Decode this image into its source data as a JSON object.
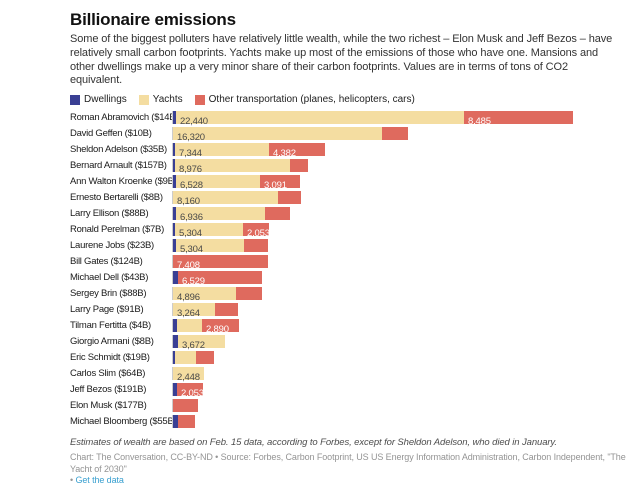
{
  "header": {
    "title": "Billionaire emissions",
    "description": "Some of the biggest polluters have relatively little wealth, while the two richest – Elon Musk and Jeff Bezos – have relatively small carbon footprints. Yachts make up most of the emissions of those who have one. Mansions and other dwellings make up a very minor share of their carbon footprints. Values are in terms of tons of CO2 equivalent."
  },
  "colors": {
    "dwellings": "#3a3f94",
    "yachts": "#f4dda1",
    "other": "#df6a5e",
    "axis_line": "#cccccc",
    "link": "#3aa0d0"
  },
  "legend": {
    "items": [
      {
        "key": "dwellings",
        "label": "Dwellings"
      },
      {
        "key": "yachts",
        "label": "Yachts"
      },
      {
        "key": "other",
        "label": "Other transportation (planes, helicopters, cars)"
      }
    ]
  },
  "chart_data": {
    "type": "bar",
    "stacked": true,
    "orientation": "horizontal",
    "value_unit": "tons of CO2 equivalent",
    "series": [
      "Dwellings",
      "Yachts",
      "Other transportation (planes, helicopters, cars)"
    ],
    "axis": {
      "x_min": 0,
      "x_max": 35000,
      "tons_per_pixel": 78,
      "gridlines": false
    },
    "note": "values without in-bar labels are unlabeled in the chart and estimated from bar lengths",
    "rows": [
      {
        "name": "Roman Abramovich ($14B)",
        "values": {
          "dwellings": 230,
          "yachts": 22440,
          "other": 8485
        },
        "value_labels": {
          "yachts": "22,440",
          "other": "8,485"
        }
      },
      {
        "name": "David Geffen ($10B)",
        "values": {
          "dwellings": 0,
          "yachts": 16320,
          "other": 2000
        },
        "value_labels": {
          "yachts": "16,320"
        }
      },
      {
        "name": "Sheldon Adelson ($35B)",
        "values": {
          "dwellings": 180,
          "yachts": 7344,
          "other": 4382
        },
        "value_labels": {
          "yachts": "7,344",
          "other": "4,382"
        }
      },
      {
        "name": "Bernard Arnault ($157B)",
        "values": {
          "dwellings": 160,
          "yachts": 8976,
          "other": 1400
        },
        "value_labels": {
          "yachts": "8,976"
        }
      },
      {
        "name": "Ann Walton Kroenke ($9B)",
        "values": {
          "dwellings": 230,
          "yachts": 6528,
          "other": 3091
        },
        "value_labels": {
          "yachts": "6,528",
          "other": "3,091"
        }
      },
      {
        "name": "Ernesto Bertarelli ($8B)",
        "values": {
          "dwellings": 0,
          "yachts": 8160,
          "other": 1800
        },
        "value_labels": {
          "yachts": "8,160"
        }
      },
      {
        "name": "Larry Ellison ($88B)",
        "values": {
          "dwellings": 230,
          "yachts": 6936,
          "other": 1950
        },
        "value_labels": {
          "yachts": "6,936"
        }
      },
      {
        "name": "Ronald Perelman ($7B)",
        "values": {
          "dwellings": 150,
          "yachts": 5304,
          "other": 2053
        },
        "value_labels": {
          "yachts": "5,304",
          "other": "2,053"
        }
      },
      {
        "name": "Laurene Jobs ($23B)",
        "values": {
          "dwellings": 230,
          "yachts": 5304,
          "other": 1850
        },
        "value_labels": {
          "yachts": "5,304"
        }
      },
      {
        "name": "Bill Gates ($124B)",
        "values": {
          "dwellings": 0,
          "yachts": 0,
          "other": 7408
        },
        "value_labels": {
          "other": "7,408"
        }
      },
      {
        "name": "Michael Dell ($43B)",
        "values": {
          "dwellings": 390,
          "yachts": 0,
          "other": 6529
        },
        "value_labels": {
          "other": "6,529"
        }
      },
      {
        "name": "Sergey Brin ($88B)",
        "values": {
          "dwellings": 0,
          "yachts": 4896,
          "other": 2000
        },
        "value_labels": {
          "yachts": "4,896"
        }
      },
      {
        "name": "Larry Page ($91B)",
        "values": {
          "dwellings": 0,
          "yachts": 3264,
          "other": 1800
        },
        "value_labels": {
          "yachts": "3,264"
        }
      },
      {
        "name": "Tilman Fertitta ($4B)",
        "values": {
          "dwellings": 300,
          "yachts": 1950,
          "other": 2890
        },
        "value_labels": {
          "other": "2,890"
        }
      },
      {
        "name": "Giorgio Armani ($8B)",
        "values": {
          "dwellings": 390,
          "yachts": 3672,
          "other": 0
        },
        "value_labels": {
          "yachts": "3,672"
        }
      },
      {
        "name": "Eric Schmidt ($19B)",
        "values": {
          "dwellings": 150,
          "yachts": 1650,
          "other": 1400
        },
        "value_labels": {}
      },
      {
        "name": "Carlos Slim ($64B)",
        "values": {
          "dwellings": 0,
          "yachts": 2448,
          "other": 0
        },
        "value_labels": {
          "yachts": "2,448"
        }
      },
      {
        "name": "Jeff Bezos ($191B)",
        "values": {
          "dwellings": 300,
          "yachts": 0,
          "other": 2053
        },
        "value_labels": {
          "other": "2,053"
        }
      },
      {
        "name": "Elon Musk ($177B)",
        "values": {
          "dwellings": 0,
          "yachts": 0,
          "other": 1950
        },
        "value_labels": {}
      },
      {
        "name": "Michael Bloomberg ($55B)",
        "values": {
          "dwellings": 390,
          "yachts": 0,
          "other": 1330
        },
        "value_labels": {}
      }
    ]
  },
  "footer": {
    "note": "Estimates of wealth are based on Feb. 15 data, according to Forbes, except for Sheldon Adelson, who died in January.",
    "credit": "Chart: The Conversation, CC-BY-ND • Source: Forbes, Carbon Footprint, US US Energy Information Administration, Carbon Independent, \"The Yacht of 2030\"",
    "link_bullet": "•",
    "link_label": "Get the data"
  }
}
